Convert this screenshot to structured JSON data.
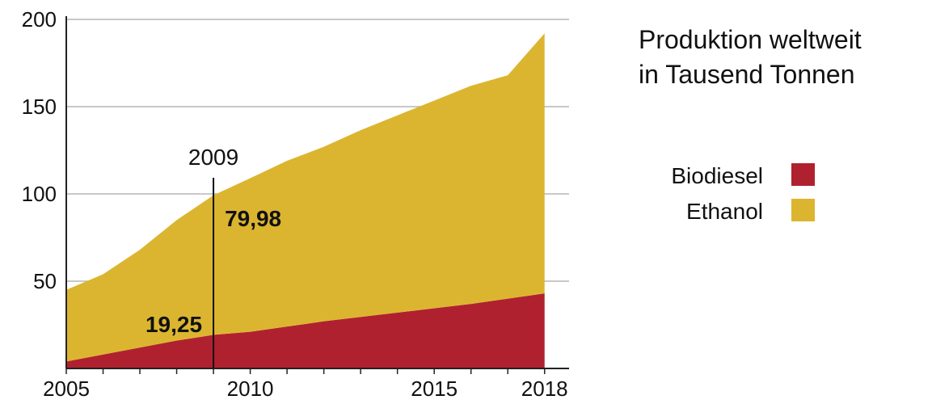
{
  "chart_data": {
    "type": "area",
    "stacked": true,
    "title": "Produktion weltweit",
    "subtitle": "in Tausend Tonnen",
    "xlabel": "",
    "ylabel": "",
    "x": [
      2005,
      2006,
      2007,
      2008,
      2009,
      2010,
      2011,
      2012,
      2013,
      2014,
      2015,
      2016,
      2017,
      2018
    ],
    "series": [
      {
        "name": "Biodiesel",
        "color": "#b0212f",
        "values": [
          4,
          8,
          12,
          16,
          19.25,
          21,
          24,
          27,
          29.5,
          32,
          34.5,
          37,
          40,
          43
        ]
      },
      {
        "name": "Ethanol",
        "color": "#dcb530",
        "values": [
          41,
          46,
          56,
          69,
          79.98,
          88,
          95,
          100,
          107,
          113,
          119,
          125,
          128,
          149
        ]
      }
    ],
    "xticks": [
      2005,
      2010,
      2015,
      2018
    ],
    "yticks": [
      50,
      100,
      150,
      200
    ],
    "xlim": [
      2005,
      2018.05
    ],
    "ylim": [
      0,
      200
    ],
    "grid": true,
    "legend_position": "right",
    "annotation": {
      "x": 2009,
      "label": "2009",
      "biodiesel_value_label": "19,25",
      "ethanol_value_label": "79,98"
    }
  }
}
